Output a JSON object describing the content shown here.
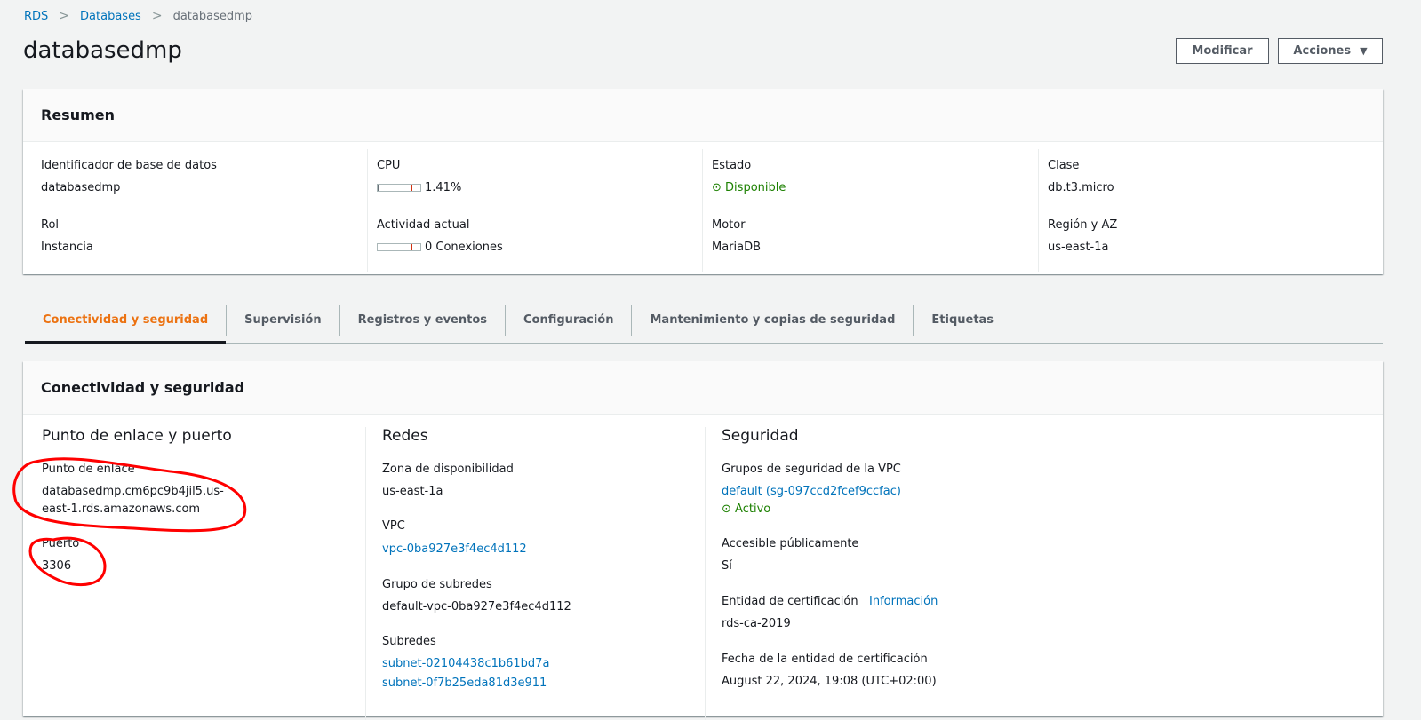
{
  "breadcrumb": [
    {
      "label": "RDS"
    },
    {
      "label": "Databases"
    },
    {
      "label": "databasedmp"
    }
  ],
  "page_title": "databasedmp",
  "actions": {
    "modify": "Modificar",
    "actions": "Acciones"
  },
  "summary": {
    "title": "Resumen",
    "fields": [
      {
        "label": "Identificador de base de datos",
        "value": "databasedmp"
      },
      {
        "label": "CPU",
        "value": "1.41%",
        "percent": 1.41
      },
      {
        "label": "Estado",
        "value": "Disponible"
      },
      {
        "label": "Clase",
        "value": "db.t3.micro"
      },
      {
        "label": "Rol",
        "value": "Instancia"
      },
      {
        "label": "Actividad actual",
        "value": "0 Conexiones"
      },
      {
        "label": "Motor",
        "value": "MariaDB"
      },
      {
        "label": "Región y AZ",
        "value": "us-east-1a"
      }
    ]
  },
  "tabs": [
    {
      "label": "Conectividad y seguridad",
      "active": true
    },
    {
      "label": "Supervisión"
    },
    {
      "label": "Registros y eventos"
    },
    {
      "label": "Configuración"
    },
    {
      "label": "Mantenimiento y copias de seguridad"
    },
    {
      "label": "Etiquetas"
    }
  ],
  "connectivity": {
    "title": "Conectividad y seguridad",
    "endpoint": {
      "heading": "Punto de enlace y puerto",
      "endpoint_label": "Punto de enlace",
      "endpoint_line1": "databasedmp.cm6pc9b4jil5.us-",
      "endpoint_line2": "east-1.rds.amazonaws.com",
      "port_label": "Puerto",
      "port": "3306"
    },
    "network": {
      "heading": "Redes",
      "az_label": "Zona de disponibilidad",
      "az": "us-east-1a",
      "vpc_label": "VPC",
      "vpc": "vpc-0ba927e3f4ec4d112",
      "subnet_group_label": "Grupo de subredes",
      "subnet_group": "default-vpc-0ba927e3f4ec4d112",
      "subnets_label": "Subredes",
      "subnets": [
        "subnet-02104438c1b61bd7a",
        "subnet-0f7b25eda81d3e911"
      ]
    },
    "security": {
      "heading": "Seguridad",
      "sg_label": "Grupos de seguridad de la VPC",
      "sg": "default (sg-097ccd2fcef9ccfac)",
      "sg_status": "Activo",
      "public_label": "Accesible públicamente",
      "public": "Sí",
      "ca_label": "Entidad de certificación",
      "ca_info": "Información",
      "ca": "rds-ca-2019",
      "ca_date_label": "Fecha de la entidad de certificación",
      "ca_date": "August 22, 2024, 19:08 (UTC+02:00)"
    }
  },
  "colors": {
    "link": "#0073bb",
    "success": "#1d8102",
    "active_tab": "#ec7211",
    "annotation": "#ff0000"
  }
}
